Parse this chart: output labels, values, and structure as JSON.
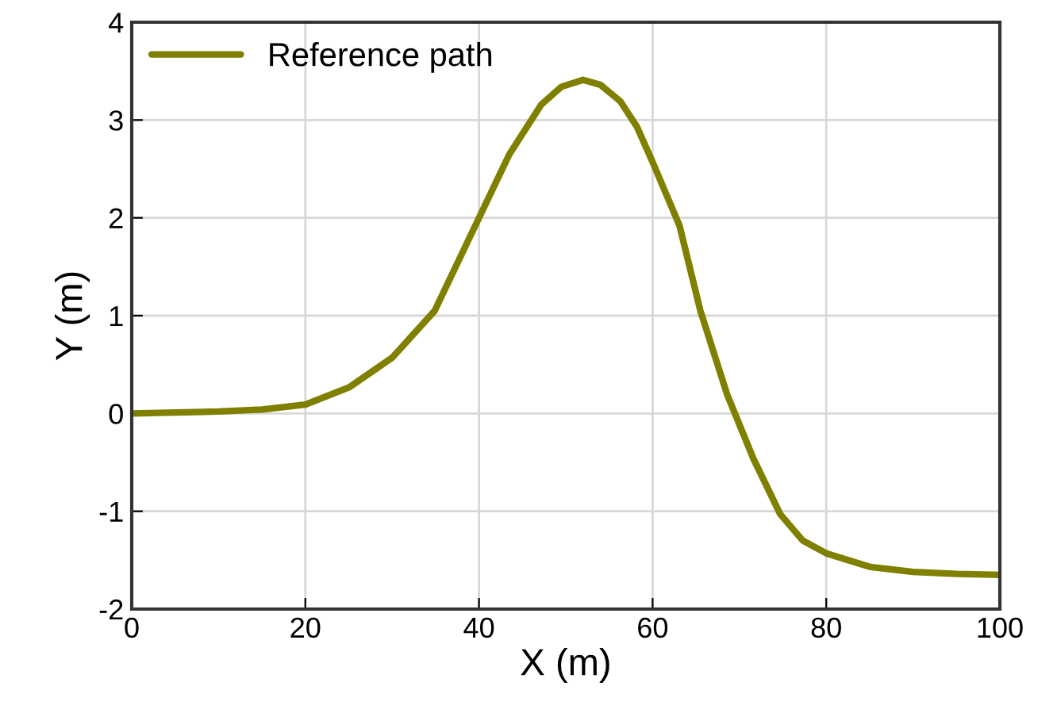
{
  "chart_data": {
    "type": "line",
    "xlabel": "X (m)",
    "ylabel": "Y (m)",
    "xlim": [
      0,
      100
    ],
    "xticks": [
      0,
      20,
      40,
      60,
      80,
      100
    ],
    "ylim": [
      -2,
      4
    ],
    "yticks": [
      -2,
      -1,
      0,
      1,
      2,
      3,
      4
    ],
    "grid": true,
    "legend": "top left",
    "marker": "none",
    "line_style": "solid",
    "series": [
      {
        "name": "Reference path",
        "color": "#808000",
        "x": [
          0,
          5,
          10,
          15,
          20,
          25.1,
          30,
          34.9,
          40,
          43.5,
          47.2,
          49.5,
          52,
          54,
          56.3,
          58.2,
          60,
          63.1,
          65.5,
          68.6,
          71.6,
          74.7,
          77.3,
          80,
          85.1,
          90,
          95,
          100
        ],
        "values": [
          0,
          0.01,
          0.02,
          0.04,
          0.09,
          0.27,
          0.57,
          1.05,
          2.0,
          2.65,
          3.16,
          3.34,
          3.41,
          3.36,
          3.19,
          2.93,
          2.57,
          1.92,
          1.05,
          0.19,
          -0.46,
          -1.03,
          -1.3,
          -1.43,
          -1.57,
          -1.62,
          -1.64,
          -1.65
        ]
      }
    ]
  }
}
